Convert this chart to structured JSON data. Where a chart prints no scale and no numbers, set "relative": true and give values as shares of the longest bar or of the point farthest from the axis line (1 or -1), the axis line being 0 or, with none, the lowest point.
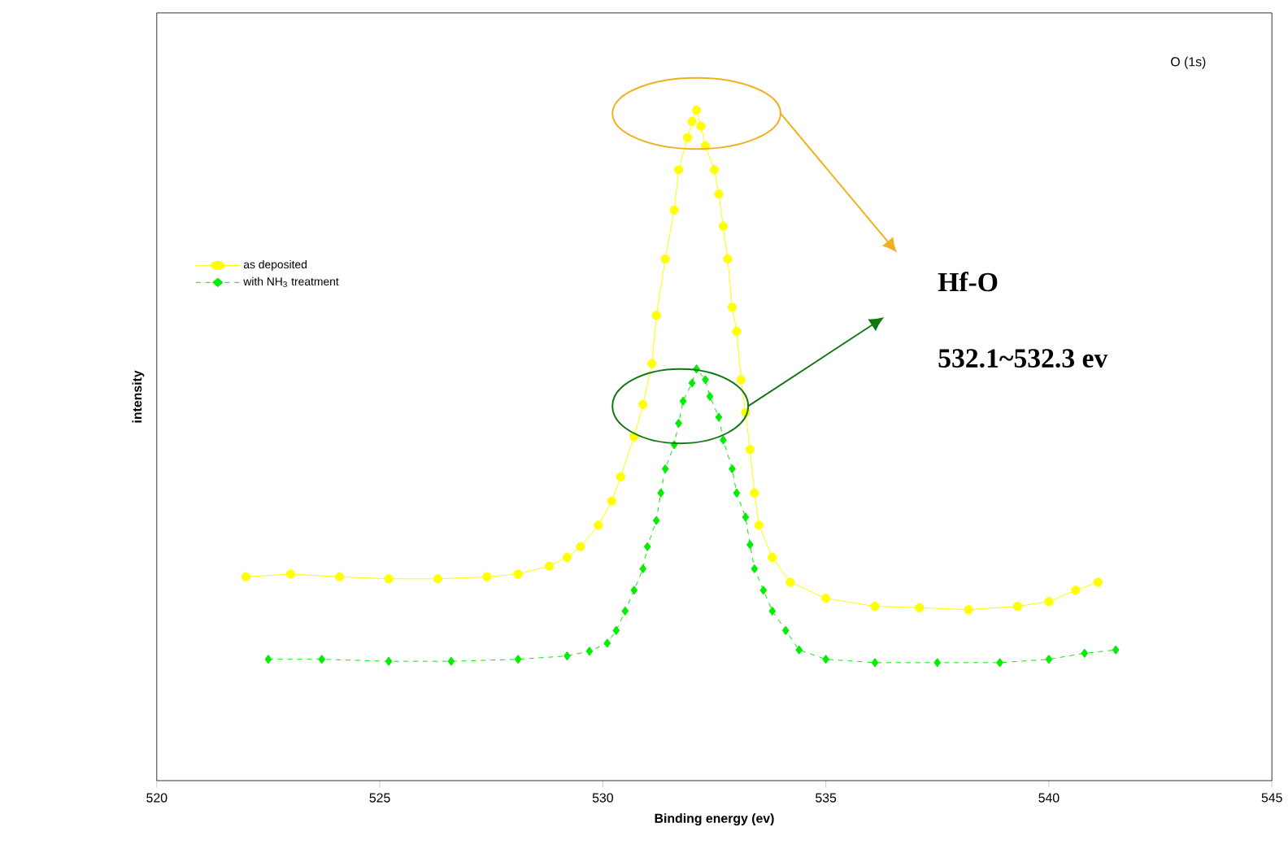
{
  "chart_data": {
    "type": "line",
    "relative": true,
    "xlabel": "Binding energy (ev)",
    "ylabel": "intensity",
    "xlim": [
      520,
      545
    ],
    "xticks": [
      520,
      525,
      530,
      535,
      540,
      545
    ],
    "legend": "left",
    "annotations": [
      "O (1s)",
      "Hf-O",
      "532.1~532.3 ev"
    ],
    "series": [
      {
        "name": "as deposited",
        "color": "#ffff00",
        "marker": "circle",
        "line_style": "solid",
        "x": [
          522.0,
          523.0,
          524.1,
          525.2,
          526.3,
          527.4,
          528.1,
          528.8,
          529.2,
          529.5,
          529.9,
          530.2,
          530.4,
          530.7,
          530.9,
          531.1,
          531.2,
          531.4,
          531.6,
          531.7,
          531.9,
          532.0,
          532.1,
          532.2,
          532.3,
          532.5,
          532.6,
          532.7,
          532.8,
          532.9,
          533.0,
          533.1,
          533.2,
          533.3,
          533.4,
          533.5,
          533.8,
          534.2,
          535.0,
          536.1,
          537.1,
          538.2,
          539.3,
          540.0,
          540.6,
          541.1
        ],
        "values": [
          0.304,
          0.308,
          0.304,
          0.301,
          0.301,
          0.304,
          0.308,
          0.32,
          0.333,
          0.349,
          0.381,
          0.417,
          0.453,
          0.513,
          0.561,
          0.622,
          0.694,
          0.778,
          0.851,
          0.911,
          0.959,
          0.983,
          1.0,
          0.976,
          0.947,
          0.911,
          0.875,
          0.827,
          0.778,
          0.706,
          0.67,
          0.598,
          0.549,
          0.494,
          0.429,
          0.381,
          0.333,
          0.296,
          0.272,
          0.26,
          0.258,
          0.255,
          0.26,
          0.267,
          0.284,
          0.296
        ]
      },
      {
        "name": "with NH$_{3}$ treatment",
        "color": "#00ee00",
        "marker": "diamond",
        "line_style": "dashed",
        "x": [
          522.5,
          523.7,
          525.2,
          526.6,
          528.1,
          529.2,
          529.7,
          530.1,
          530.3,
          530.5,
          530.7,
          530.9,
          531.0,
          531.2,
          531.3,
          531.4,
          531.6,
          531.7,
          531.8,
          532.0,
          532.1,
          532.3,
          532.4,
          532.6,
          532.7,
          532.9,
          533.0,
          533.2,
          533.3,
          533.4,
          533.6,
          533.8,
          534.1,
          534.4,
          535.0,
          536.1,
          537.5,
          538.9,
          540.0,
          540.8,
          541.5
        ],
        "values": [
          0.181,
          0.181,
          0.178,
          0.178,
          0.181,
          0.186,
          0.193,
          0.205,
          0.224,
          0.253,
          0.284,
          0.316,
          0.349,
          0.388,
          0.429,
          0.465,
          0.501,
          0.533,
          0.566,
          0.593,
          0.614,
          0.598,
          0.573,
          0.542,
          0.508,
          0.465,
          0.429,
          0.393,
          0.352,
          0.316,
          0.284,
          0.253,
          0.224,
          0.195,
          0.181,
          0.176,
          0.176,
          0.176,
          0.181,
          0.19,
          0.195
        ]
      }
    ]
  }
}
